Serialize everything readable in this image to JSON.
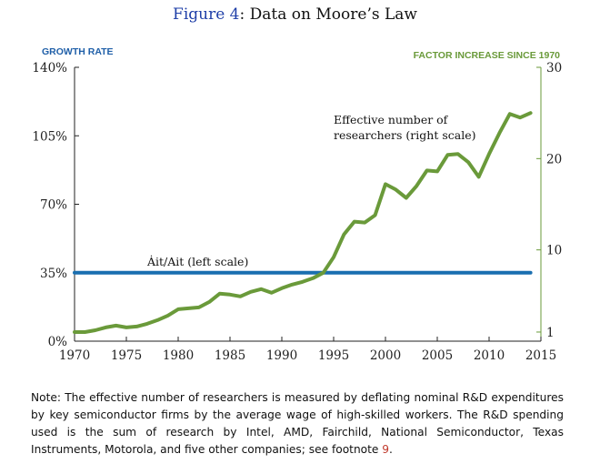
{
  "figure": {
    "label": "Figure 4",
    "separator": ":",
    "title": "Data on Moore’s Law"
  },
  "chart_data": {
    "type": "line",
    "title": "Data on Moore’s Law",
    "left_axis": {
      "label": "GROWTH RATE",
      "range": [
        0,
        140
      ],
      "ticks": [
        0,
        35,
        70,
        105,
        140
      ],
      "tick_labels": [
        "0%",
        "35%",
        "70%",
        "105%",
        "140%"
      ],
      "color": "#1f5fa8"
    },
    "right_axis": {
      "label": "FACTOR INCREASE SINCE 1970",
      "range": [
        0,
        30
      ],
      "ticks": [
        1,
        10,
        20,
        30
      ],
      "tick_labels": [
        "1",
        "10",
        "20",
        "30"
      ],
      "color": "#6a9a3a"
    },
    "x_axis": {
      "range": [
        1970,
        2015
      ],
      "ticks": [
        1970,
        1975,
        1980,
        1985,
        1990,
        1995,
        2000,
        2005,
        2010,
        2015
      ],
      "tick_labels": [
        "1970",
        "1975",
        "1980",
        "1985",
        "1990",
        "1995",
        "2000",
        "2005",
        "2010",
        "2015"
      ]
    },
    "series": [
      {
        "name": "Ȧit/Ait (left scale)",
        "axis": "left",
        "color": "#1a6fb0",
        "x": [
          1970,
          2014
        ],
        "values": [
          35,
          35
        ]
      },
      {
        "name": "Effective number of researchers (right scale)",
        "axis": "right",
        "color": "#6a9a3a",
        "x": [
          1970,
          1971,
          1972,
          1973,
          1974,
          1975,
          1976,
          1977,
          1978,
          1979,
          1980,
          1981,
          1982,
          1983,
          1984,
          1985,
          1986,
          1987,
          1988,
          1989,
          1990,
          1991,
          1992,
          1993,
          1994,
          1995,
          1996,
          1997,
          1998,
          1999,
          2000,
          2001,
          2002,
          2003,
          2004,
          2005,
          2006,
          2007,
          2008,
          2009,
          2010,
          2011,
          2012,
          2013,
          2014
        ],
        "values": [
          1.0,
          1.0,
          1.2,
          1.5,
          1.7,
          1.5,
          1.6,
          1.9,
          2.3,
          2.8,
          3.5,
          3.6,
          3.7,
          4.3,
          5.2,
          5.1,
          4.9,
          5.4,
          5.7,
          5.3,
          5.8,
          6.2,
          6.5,
          6.9,
          7.5,
          9.2,
          11.7,
          13.1,
          13.0,
          13.8,
          17.2,
          16.6,
          15.7,
          17.0,
          18.7,
          18.6,
          20.4,
          20.5,
          19.6,
          18.0,
          20.5,
          22.8,
          24.9,
          24.5,
          25.0
        ]
      }
    ],
    "annotations": [
      {
        "text_line1": "Effective number of",
        "text_line2": "researchers (right scale)"
      },
      {
        "text": "Ȧit/Ait (left scale)"
      }
    ]
  },
  "note": {
    "text": "Note: The effective number of researchers is measured by deflating nominal R&D expenditures by key semiconductor firms by the average wage of high-skilled workers. The R&D spending used is the sum of research by Intel, AMD, Fairchild, National Semiconductor, Texas Instruments, Motorola, and five other companies; see footnote ",
    "footnote_ref": "9",
    "end": "."
  }
}
